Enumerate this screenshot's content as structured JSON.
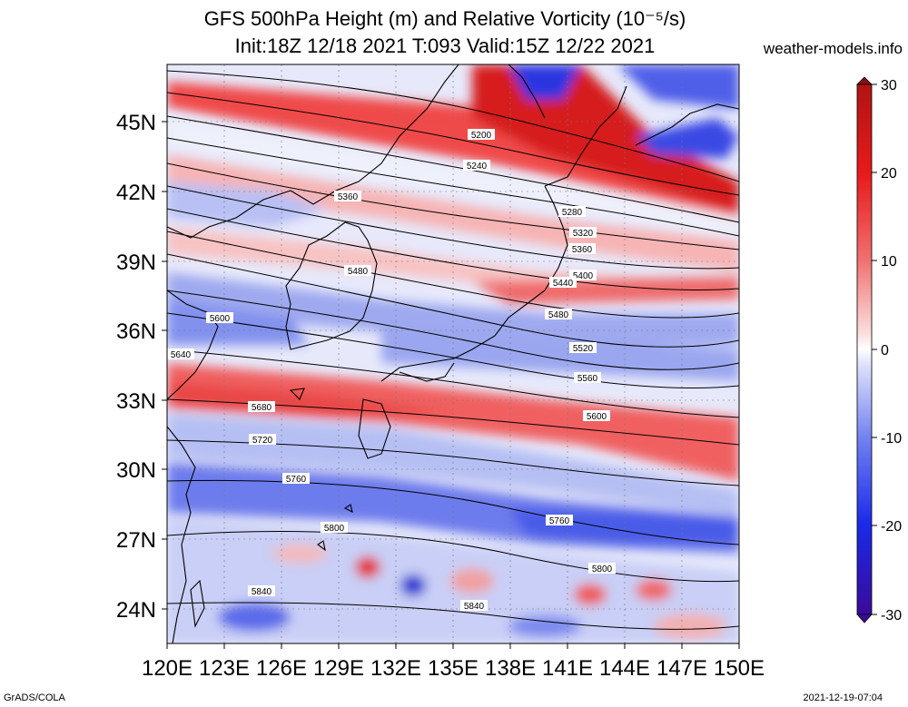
{
  "title_line1": "GFS 500hPa Height (m) and Relative Vorticity (10⁻⁵/s)",
  "title_line2": "Init:18Z 12/18 2021 T:093 Valid:15Z 12/22 2021",
  "site": "weather-models.info",
  "footer_left": "GrADS/COLA",
  "footer_right": "2021-12-19-07:04",
  "lat_labels": [
    "45N",
    "42N",
    "39N",
    "36N",
    "33N",
    "30N",
    "27N",
    "24N"
  ],
  "lon_labels": [
    "120E",
    "123E",
    "126E",
    "129E",
    "132E",
    "135E",
    "138E",
    "141E",
    "144E",
    "147E",
    "150E"
  ],
  "colorbar": {
    "labels": [
      "30",
      "20",
      "10",
      "0",
      "-10",
      "-20",
      "-30"
    ],
    "colors": [
      "#4b0082",
      "#2a0fc8",
      "#3b52f0",
      "#7e8cf5",
      "#c8cdf7",
      "#ffffff",
      "#f7c8c8",
      "#f58a8a",
      "#f03b3b",
      "#d01818",
      "#a01010"
    ]
  },
  "contours": {
    "labels": [
      "5200",
      "5240",
      "5280",
      "5320",
      "5360",
      "5400",
      "5440",
      "5480",
      "5520",
      "5560",
      "5600",
      "5640",
      "5680",
      "5720",
      "5760",
      "5800",
      "5840",
      "5360",
      "5480",
      "5600",
      "5760",
      "5800",
      "5840"
    ]
  },
  "colors": {
    "positive": "#e83a3a",
    "negative": "#4a5be8",
    "neutral": "#ffffff",
    "contour": "#000000",
    "coast": "#000000"
  }
}
